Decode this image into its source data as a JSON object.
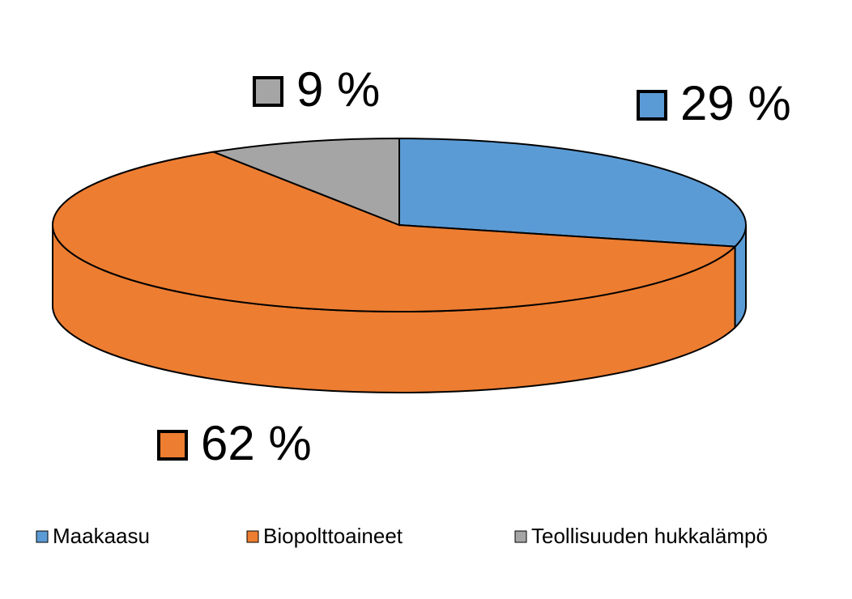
{
  "chart_data": {
    "type": "pie",
    "categories": [
      "Maakaasu",
      "Biopolttoaineet",
      "Teollisuuden hukkalämpö"
    ],
    "values": [
      29,
      62,
      9
    ],
    "value_labels": [
      "29 %",
      "62 %",
      "9 %"
    ],
    "colors": [
      "#5b9bd5",
      "#ed7d31",
      "#a5a5a5"
    ]
  }
}
